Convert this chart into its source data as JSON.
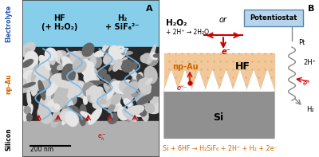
{
  "fig_width": 4.0,
  "fig_height": 1.97,
  "dpi": 100,
  "bg_color": "#ffffff",
  "panel_A": {
    "electrolyte_color": "#87CEEB",
    "silicon_color": "#b0b0b0",
    "sem_dark": "#282828",
    "blue_line_color": "#7ab8e8",
    "arrow_color": "#cc0000",
    "electrolyte_label_color": "#2255aa",
    "npau_label_color": "#cc6600",
    "silicon_label_color": "#000000",
    "hf_text": "HF\n(+ H₂O₂)",
    "h2_text": "H₂\n+ SiF₆²⁻",
    "scale_bar_text": "200 nm",
    "eh_text": "eᴴ⁻"
  },
  "panel_B": {
    "npAu_color": "#f2c898",
    "npAu_dot_color": "#d4a870",
    "Si_color": "#909090",
    "Si_light_color": "#b0b0b0",
    "potentiostat_color": "#b8d4ec",
    "potentiostat_edge": "#5588aa",
    "arrow_color": "#cc0000",
    "wire_color": "#888888",
    "npau_text_color": "#cc6600",
    "bottom_eq_color": "#cc6600",
    "H2O2_text": "H₂O₂",
    "reaction_text": "+ 2H⁺ → 2H₂O",
    "or_text": "or",
    "potentiostat_text": "Potentiostat",
    "Pt_text": "Pt",
    "2Hp_text": "2H⁺",
    "eminus_text": "e⁻",
    "H2_text": "H₂",
    "npAu_label": "np-Au",
    "HF_label": "HF",
    "Si_label": "Si",
    "eminus_top": "e⁻",
    "eh_label": "eᴴ⁻",
    "bottom_eq": "Si + 6HF → H₂SiF₆ + 2H⁺ + H₂ + 2e⁻"
  }
}
